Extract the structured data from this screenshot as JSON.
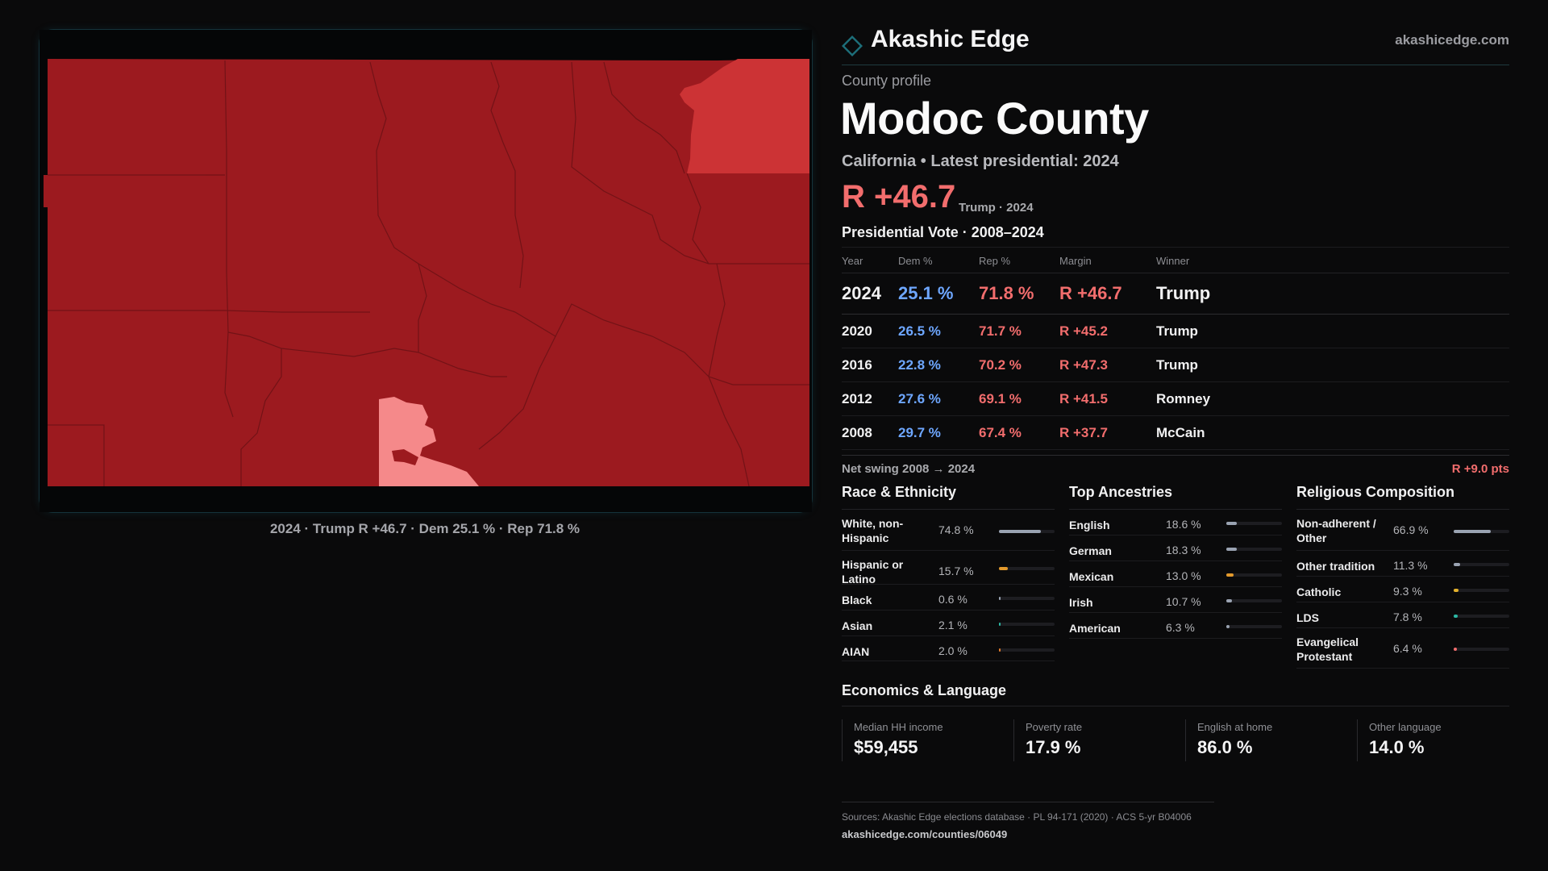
{
  "brand": {
    "name": "Akashic Edge",
    "url": "akashicedge.com",
    "accent_color": "#1d6f7a"
  },
  "map": {
    "caption": "2024 · Trump R +46.7 · Dem 25.1 % · Rep 71.8 %",
    "colors": {
      "strong_rep": "#9c1a1f",
      "lean_rep": "#cc3335",
      "light_rep": "#f5898a",
      "border": "#6e1216"
    }
  },
  "profile": {
    "eyebrow": "County profile",
    "title": "Modoc County",
    "subtitle": "California • Latest presidential: 2024",
    "margin_headline": "R +46.7",
    "margin_note": "Trump · 2024"
  },
  "vote": {
    "title": "Presidential Vote · 2008–2024",
    "headers": {
      "year": "Year",
      "dem": "Dem %",
      "rep": "Rep %",
      "margin": "Margin",
      "winner": "Winner"
    },
    "rows": [
      {
        "year": "2024",
        "dem": "25.1 %",
        "rep": "71.8 %",
        "margin": "R +46.7",
        "winner": "Trump"
      },
      {
        "year": "2020",
        "dem": "26.5 %",
        "rep": "71.7 %",
        "margin": "R +45.2",
        "winner": "Trump"
      },
      {
        "year": "2016",
        "dem": "22.8 %",
        "rep": "70.2 %",
        "margin": "R +47.3",
        "winner": "Trump"
      },
      {
        "year": "2012",
        "dem": "27.6 %",
        "rep": "69.1 %",
        "margin": "R +41.5",
        "winner": "Romney"
      },
      {
        "year": "2008",
        "dem": "29.7 %",
        "rep": "67.4 %",
        "margin": "R +37.7",
        "winner": "McCain"
      }
    ],
    "swing_label": "Net swing 2008 → 2024",
    "swing_value": "R +9.0 pts"
  },
  "race": {
    "title": "Race & Ethnicity",
    "items": [
      {
        "label": "White, non-Hispanic",
        "value": "74.8 %",
        "pct": 74.8,
        "color": "#9aa3b2"
      },
      {
        "label": "Hispanic or Latino",
        "value": "15.7 %",
        "pct": 15.7,
        "color": "#e39a2c"
      },
      {
        "label": "Black",
        "value": "0.6 %",
        "pct": 0.6,
        "color": "#9aa3b2"
      },
      {
        "label": "Asian",
        "value": "2.1 %",
        "pct": 2.1,
        "color": "#2bb7a3"
      },
      {
        "label": "AIAN",
        "value": "2.0 %",
        "pct": 2.0,
        "color": "#e07a2c"
      }
    ]
  },
  "ancestry": {
    "title": "Top Ancestries",
    "items": [
      {
        "label": "English",
        "value": "18.6 %",
        "pct": 18.6,
        "color": "#9aa3b2"
      },
      {
        "label": "German",
        "value": "18.3 %",
        "pct": 18.3,
        "color": "#9aa3b2"
      },
      {
        "label": "Mexican",
        "value": "13.0 %",
        "pct": 13.0,
        "color": "#e39a2c"
      },
      {
        "label": "Irish",
        "value": "10.7 %",
        "pct": 10.7,
        "color": "#9aa3b2"
      },
      {
        "label": "American",
        "value": "6.3 %",
        "pct": 6.3,
        "color": "#9aa3b2"
      }
    ]
  },
  "religion": {
    "title": "Religious Composition",
    "items": [
      {
        "label": "Non-adherent / Other",
        "value": "66.9 %",
        "pct": 66.9,
        "color": "#9aa3b2"
      },
      {
        "label": "Other tradition",
        "value": "11.3 %",
        "pct": 11.3,
        "color": "#9aa3b2"
      },
      {
        "label": "Catholic",
        "value": "9.3 %",
        "pct": 9.3,
        "color": "#e3b12c"
      },
      {
        "label": "LDS",
        "value": "7.8 %",
        "pct": 7.8,
        "color": "#2bb7a3"
      },
      {
        "label": "Evangelical Protestant",
        "value": "6.4 %",
        "pct": 6.4,
        "color": "#f26d6d"
      }
    ]
  },
  "economics": {
    "title": "Economics & Language",
    "kpis": [
      {
        "label": "Median HH income",
        "value": "$59,455"
      },
      {
        "label": "Poverty rate",
        "value": "17.9 %"
      },
      {
        "label": "English at home",
        "value": "86.0 %"
      },
      {
        "label": "Other language",
        "value": "14.0 %"
      }
    ]
  },
  "sources": {
    "line1": "Sources: Akashic Edge elections database · PL 94-171 (2020) · ACS 5-yr B04006",
    "line2": "akashicedge.com/counties/06049"
  }
}
